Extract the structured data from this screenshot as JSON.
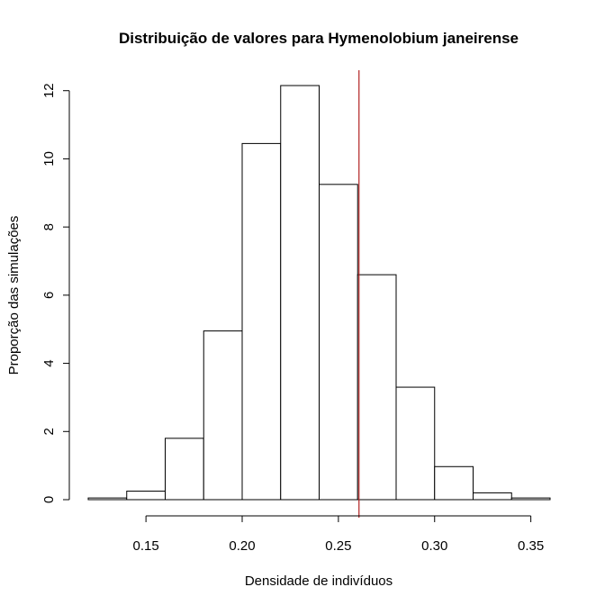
{
  "chart_data": {
    "type": "bar",
    "title": "Distribuição de valores para Hymenolobium janeirense",
    "xlabel": "Densidade de indivíduos",
    "ylabel": "Proporção das simulações",
    "xlim": [
      0.12,
      0.36
    ],
    "ylim": [
      0,
      12.6
    ],
    "x_ticks": [
      0.15,
      0.2,
      0.25,
      0.3,
      0.35
    ],
    "x_tick_labels": [
      "0.15",
      "0.20",
      "0.25",
      "0.30",
      "0.35"
    ],
    "y_ticks": [
      0,
      2,
      4,
      6,
      8,
      10,
      12
    ],
    "y_tick_labels": [
      "0",
      "2",
      "4",
      "6",
      "8",
      "10",
      "12"
    ],
    "bins": [
      {
        "start": 0.12,
        "end": 0.14,
        "value": 0.05
      },
      {
        "start": 0.14,
        "end": 0.16,
        "value": 0.25
      },
      {
        "start": 0.16,
        "end": 0.18,
        "value": 1.8
      },
      {
        "start": 0.18,
        "end": 0.2,
        "value": 4.95
      },
      {
        "start": 0.2,
        "end": 0.22,
        "value": 10.45
      },
      {
        "start": 0.22,
        "end": 0.24,
        "value": 12.15
      },
      {
        "start": 0.24,
        "end": 0.26,
        "value": 9.25
      },
      {
        "start": 0.26,
        "end": 0.28,
        "value": 6.6
      },
      {
        "start": 0.28,
        "end": 0.3,
        "value": 3.3
      },
      {
        "start": 0.3,
        "end": 0.32,
        "value": 0.97
      },
      {
        "start": 0.32,
        "end": 0.34,
        "value": 0.2
      },
      {
        "start": 0.34,
        "end": 0.36,
        "value": 0.05
      }
    ],
    "reference_line": {
      "x": 0.2607,
      "color": "#b22222"
    },
    "grid": false,
    "legend": "none"
  }
}
